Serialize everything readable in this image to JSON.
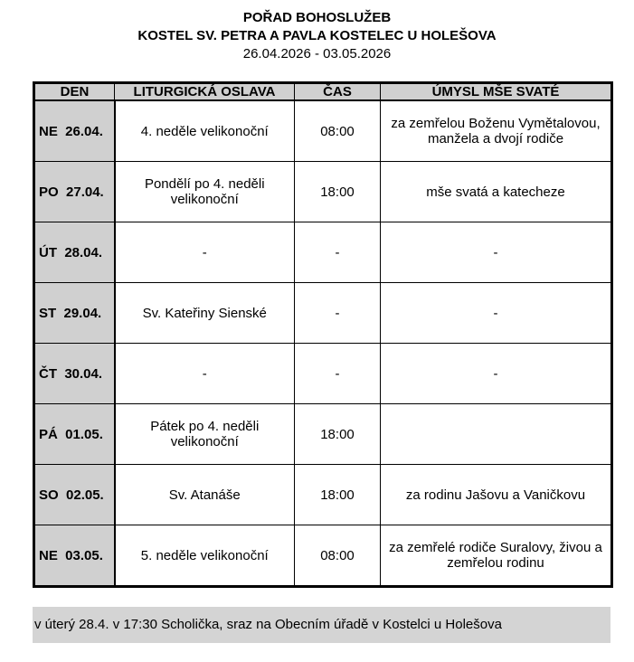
{
  "header": {
    "title": "POŘAD BOHOSLUŽEB",
    "subtitle": "KOSTEL SV. PETRA A PAVLA KOSTELEC U HOLEŠOVA",
    "dates": "26.04.2026 - 03.05.2026"
  },
  "table": {
    "columns": [
      "DEN",
      "LITURGICKÁ OSLAVA",
      "ČAS",
      "ÚMYSL MŠE SVATÉ"
    ],
    "rows": [
      {
        "day": "NE  26.04.",
        "celebration": "4. neděle velikonoční",
        "time": "08:00",
        "intention": "za zemřelou Boženu Vymětalovou, manžela a dvojí rodiče"
      },
      {
        "day": "PO  27.04.",
        "celebration": "Pondělí po 4. neděli velikonoční",
        "time": "18:00",
        "intention": "mše svatá a katecheze"
      },
      {
        "day": "ÚT  28.04.",
        "celebration": "-",
        "time": "-",
        "intention": "-"
      },
      {
        "day": "ST  29.04.",
        "celebration": "Sv. Kateřiny Sienské",
        "time": "-",
        "intention": "-"
      },
      {
        "day": "ČT  30.04.",
        "celebration": "-",
        "time": "-",
        "intention": "-"
      },
      {
        "day": "PÁ  01.05.",
        "celebration": "Pátek po 4. neděli velikonoční",
        "time": "18:00",
        "intention": ""
      },
      {
        "day": "SO  02.05.",
        "celebration": "Sv. Atanáše",
        "time": "18:00",
        "intention": "za rodinu Jašovu a Vaničkovu"
      },
      {
        "day": "NE  03.05.",
        "celebration": "5. neděle velikonoční",
        "time": "08:00",
        "intention": "za zemřelé rodiče Suralovy, živou a zemřelou rodinu"
      }
    ]
  },
  "note": "v úterý 28.4. v 17:30 Scholička, sraz na Obecním úřadě v Kostelci u Holešova"
}
